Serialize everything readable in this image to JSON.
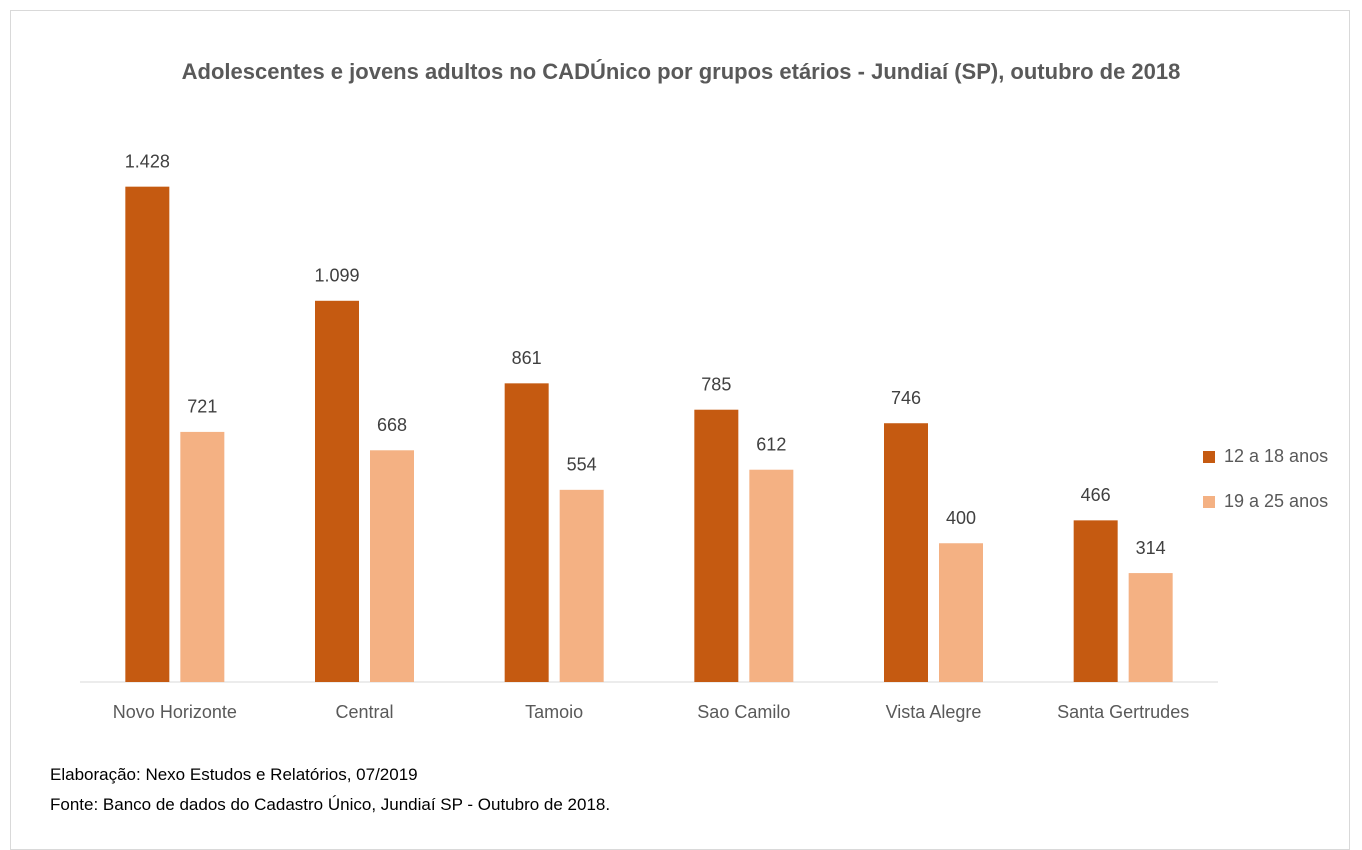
{
  "chart_data": {
    "type": "bar",
    "title": "Adolescentes e jovens adultos no CADÚnico por grupos etários - Jundiaí (SP), outubro de 2018",
    "categories": [
      "Novo Horizonte",
      "Central",
      "Tamoio",
      "Sao Camilo",
      "Vista Alegre",
      "Santa Gertrudes"
    ],
    "series": [
      {
        "name": "12 a 18 anos",
        "color": "#c55a11",
        "values": [
          1428,
          1099,
          861,
          785,
          746,
          466
        ],
        "value_labels": [
          "1.428",
          "1.099",
          "861",
          "785",
          "746",
          "466"
        ]
      },
      {
        "name": "19 a 25 anos",
        "color": "#f4b183",
        "values": [
          721,
          668,
          554,
          612,
          400,
          314
        ],
        "value_labels": [
          "721",
          "668",
          "554",
          "612",
          "400",
          "314"
        ]
      }
    ],
    "ylim": [
      0,
      1600
    ],
    "legend": "right",
    "annotations": [
      "Elaboração: Nexo Estudos e Relatórios, 07/2019",
      "Fonte: Banco de dados do Cadastro Único, Jundiaí SP - Outubro de 2018."
    ]
  }
}
